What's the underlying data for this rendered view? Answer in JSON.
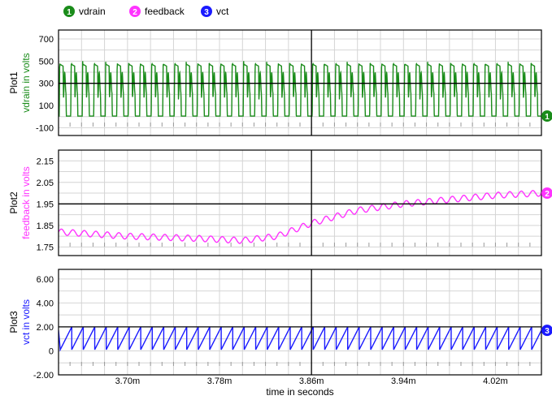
{
  "legend": [
    {
      "num": "1",
      "name": "vdrain",
      "color": "#1a8c1a"
    },
    {
      "num": "2",
      "name": "feedback",
      "color": "#ff33ff"
    },
    {
      "num": "3",
      "name": "vct",
      "color": "#1a1aff"
    }
  ],
  "x_axis": {
    "label": "time in seconds",
    "range": [
      3.64,
      4.06
    ],
    "tick_values": [
      3.7,
      3.78,
      3.86,
      3.94,
      4.02
    ],
    "tick_labels": [
      "3.70m",
      "3.78m",
      "3.86m",
      "3.94m",
      "4.02m"
    ],
    "cursor": 3.86
  },
  "chart_data": [
    {
      "type": "line",
      "title": "Plot1",
      "ylabel": "vdrain in volts",
      "color": "#1a8c1a",
      "marker_num": "1",
      "ylim": [
        -170,
        780
      ],
      "y_ticks": [
        -100,
        100,
        300,
        500,
        700
      ],
      "y_tick_labels": [
        "-100",
        "100",
        "300",
        "500",
        "700"
      ],
      "cursor_level": 300,
      "series": [
        {
          "name": "vdrain",
          "period": 0.01,
          "shape": "switching",
          "high": 470,
          "low": 0,
          "ring_min": 170,
          "ring_max": 420
        }
      ]
    },
    {
      "type": "line",
      "title": "Plot2",
      "ylabel": "feedback in volts",
      "color": "#ff33ff",
      "marker_num": "2",
      "ylim": [
        1.71,
        2.2
      ],
      "y_ticks": [
        1.75,
        1.85,
        1.95,
        2.05,
        2.15
      ],
      "y_tick_labels": [
        "1.75",
        "1.85",
        "1.95",
        "2.05",
        "2.15"
      ],
      "cursor_level": 1.95,
      "series": [
        {
          "name": "feedback",
          "period": 0.01,
          "ripple": 0.014,
          "trend_x": [
            3.64,
            3.7,
            3.76,
            3.8,
            3.83,
            3.86,
            3.9,
            3.94,
            3.98,
            4.02,
            4.06
          ],
          "trend_y": [
            1.82,
            1.8,
            1.79,
            1.78,
            1.8,
            1.86,
            1.92,
            1.95,
            1.97,
            1.99,
            2.0
          ]
        }
      ]
    },
    {
      "type": "line",
      "title": "Plot3",
      "ylabel": "vct in volts",
      "color": "#1a1aff",
      "marker_num": "3",
      "ylim": [
        -2.0,
        6.8
      ],
      "y_ticks": [
        -2,
        0,
        2,
        4,
        6
      ],
      "y_tick_labels": [
        "-2.00",
        "0",
        "2.00",
        "4.00",
        "6.00"
      ],
      "cursor_level": 2.0,
      "series": [
        {
          "name": "vct",
          "period": 0.01,
          "shape": "sawtooth",
          "min": 0.1,
          "max": 2.0
        }
      ]
    }
  ]
}
